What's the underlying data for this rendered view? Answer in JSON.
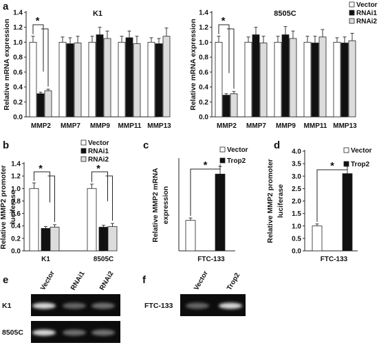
{
  "panel_letters": [
    "a",
    "b",
    "c",
    "d",
    "e",
    "f"
  ],
  "significance_mark": "*",
  "colors": {
    "Vector": "#ffffff",
    "RNAi1": "#111111",
    "RNAi2": "#dcdcdc",
    "Trop2": "#111111",
    "outline": "#222222"
  },
  "chart_data": [
    {
      "panel": "a",
      "type": "bar",
      "title": "K1",
      "ylabel": "Relative mRNA expression",
      "ylim": [
        0,
        1.4
      ],
      "yticks": [
        0.0,
        0.2,
        0.4,
        0.6,
        0.8,
        1.0,
        1.2,
        1.4
      ],
      "categories": [
        "MMP2",
        "MMP7",
        "MMP9",
        "MMP11",
        "MMP13"
      ],
      "series": [
        {
          "name": "Vector",
          "values": [
            1.0,
            1.0,
            1.0,
            1.0,
            1.0
          ],
          "errors": [
            0.08,
            0.07,
            0.08,
            0.08,
            0.06
          ]
        },
        {
          "name": "RNAi1",
          "values": [
            0.31,
            0.98,
            1.1,
            1.06,
            0.98
          ],
          "errors": [
            0.02,
            0.08,
            0.1,
            0.09,
            0.07
          ]
        },
        {
          "name": "RNAi2",
          "values": [
            0.35,
            0.99,
            1.05,
            0.98,
            1.08
          ],
          "errors": [
            0.02,
            0.09,
            0.1,
            0.1,
            0.11
          ]
        }
      ],
      "legend": "none"
    },
    {
      "panel": "a",
      "type": "bar",
      "title": "8505C",
      "ylabel": "Relative mRNA expression",
      "ylim": [
        0,
        1.4
      ],
      "yticks": [
        0.0,
        0.2,
        0.4,
        0.6,
        0.8,
        1.0,
        1.2,
        1.4
      ],
      "categories": [
        "MMP2",
        "MMP7",
        "MMP9",
        "MMP11",
        "MMP13"
      ],
      "series": [
        {
          "name": "Vector",
          "values": [
            1.0,
            1.0,
            1.0,
            1.0,
            1.0
          ],
          "errors": [
            0.08,
            0.07,
            0.08,
            0.08,
            0.06
          ]
        },
        {
          "name": "RNAi1",
          "values": [
            0.29,
            1.1,
            1.1,
            0.99,
            0.99
          ],
          "errors": [
            0.02,
            0.1,
            0.11,
            0.09,
            0.08
          ]
        },
        {
          "name": "RNAi2",
          "values": [
            0.31,
            0.99,
            1.05,
            1.07,
            1.02
          ],
          "errors": [
            0.03,
            0.09,
            0.1,
            0.1,
            0.1
          ]
        }
      ],
      "legend": "right"
    },
    {
      "panel": "b",
      "type": "bar",
      "title": "",
      "ylabel": [
        "Relative MMP2 promoter",
        "luciferase"
      ],
      "ylim": [
        0,
        1.4
      ],
      "yticks": [
        0.0,
        0.2,
        0.4,
        0.6,
        0.8,
        1.0,
        1.2,
        1.4
      ],
      "categories": [
        "K1",
        "8505C"
      ],
      "series": [
        {
          "name": "Vector",
          "values": [
            1.0,
            1.0
          ],
          "errors": [
            0.09,
            0.07
          ]
        },
        {
          "name": "RNAi1",
          "values": [
            0.36,
            0.38
          ],
          "errors": [
            0.03,
            0.03
          ]
        },
        {
          "name": "RNAi2",
          "values": [
            0.38,
            0.39
          ],
          "errors": [
            0.04,
            0.05
          ]
        }
      ],
      "legend": "top-right"
    },
    {
      "panel": "c",
      "type": "bar",
      "title": "",
      "ylabel": [
        "Relative MMP2 mRNA",
        "expression"
      ],
      "ylim": [
        0,
        3.0
      ],
      "yticks": [],
      "categories": [
        "FTC-133"
      ],
      "series": [
        {
          "name": "Vector",
          "values": [
            1.0
          ],
          "errors": [
            0.08
          ]
        },
        {
          "name": "Trop2",
          "values": [
            2.52
          ],
          "errors": [
            0.25
          ]
        }
      ],
      "legend": "top-right"
    },
    {
      "panel": "d",
      "type": "bar",
      "title": "",
      "ylabel": [
        "Relative MMP2 promoter",
        "luciferase"
      ],
      "ylim": [
        0,
        4.0
      ],
      "yticks": [
        0.0,
        0.5,
        1.0,
        1.5,
        2.0,
        2.5,
        3.0,
        3.5,
        4.0
      ],
      "categories": [
        "FTC-133"
      ],
      "series": [
        {
          "name": "Vector",
          "values": [
            1.0
          ],
          "errors": [
            0.08
          ]
        },
        {
          "name": "Trop2",
          "values": [
            3.1
          ],
          "errors": [
            0.3
          ]
        }
      ],
      "legend": "top-right"
    }
  ],
  "gels": [
    {
      "panel": "e",
      "lanes": [
        "Vector",
        "RNAi1",
        "RNAi2"
      ],
      "rows": [
        "K1",
        "8505C"
      ],
      "band_intensity": [
        [
          1.0,
          0.35,
          0.4
        ],
        [
          1.0,
          0.4,
          0.42
        ]
      ]
    },
    {
      "panel": "f",
      "lanes": [
        "Vector",
        "Trop2"
      ],
      "rows": [
        "FTC-133"
      ],
      "band_intensity": [
        [
          0.35,
          1.0
        ]
      ]
    }
  ]
}
